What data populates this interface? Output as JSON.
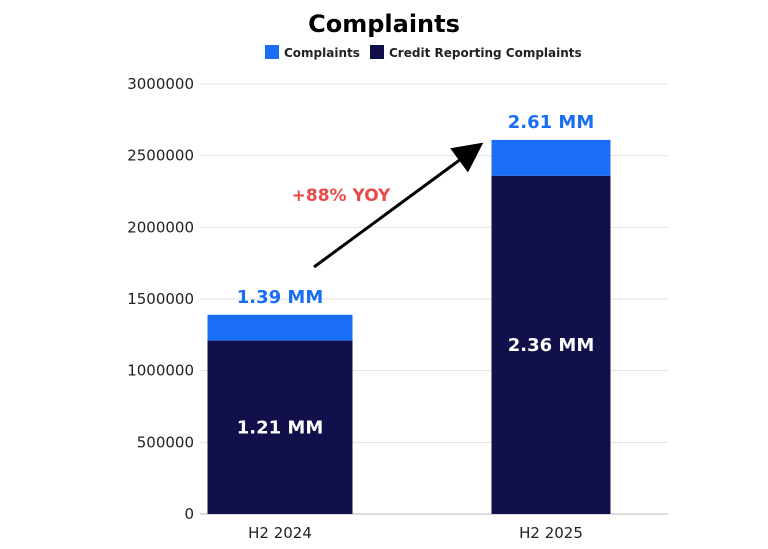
{
  "chart_data": {
    "type": "bar",
    "stacked": true,
    "title": "Complaints",
    "categories": [
      "H2 2024",
      "H2 2025"
    ],
    "series": [
      {
        "name": "Credit Reporting Complaints",
        "color": "#12104a",
        "values": [
          1210000,
          2360000
        ]
      },
      {
        "name": "Complaints",
        "color": "#1a6ef5",
        "values": [
          180000,
          250000
        ]
      }
    ],
    "totals": [
      1390000,
      2610000
    ],
    "legend": [
      "Complaints",
      "Credit Reporting Complaints"
    ],
    "legend_position": "top",
    "data_labels": {
      "totals": [
        "1.39 MM",
        "2.61 MM"
      ],
      "inner": [
        "1.21 MM",
        "2.36 MM"
      ]
    },
    "annotation": {
      "text": "+88% YOY",
      "color": "#e84a4a"
    },
    "yticks": [
      "0",
      "500000",
      "1000000",
      "1500000",
      "2000000",
      "2500000",
      "3000000"
    ],
    "ylim": [
      0,
      3000000
    ],
    "grid": true,
    "xlabel": "",
    "ylabel": ""
  }
}
